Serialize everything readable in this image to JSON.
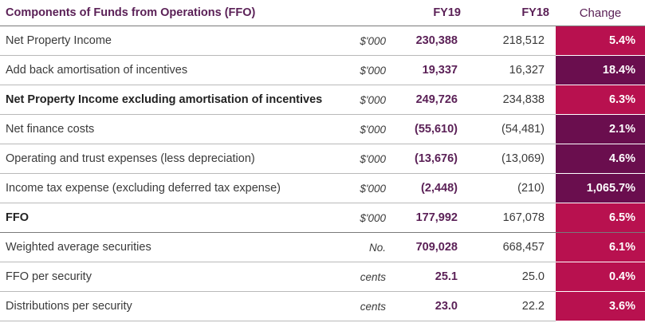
{
  "header": {
    "label": "Components of Funds from Operations (FFO)",
    "unit": "",
    "fy19": "FY19",
    "fy18": "FY18",
    "change": "Change"
  },
  "rows": [
    {
      "label": "Net Property Income",
      "unit": "$'000",
      "fy19": "230,388",
      "fy18": "218,512",
      "change": "5.4%",
      "color": "#b8114f"
    },
    {
      "label": "Add back amortisation of incentives",
      "unit": "$'000",
      "fy19": "19,337",
      "fy18": "16,327",
      "change": "18.4%",
      "color": "#6a0e4e"
    },
    {
      "label": "Net Property Income excluding amortisation of incentives",
      "unit": "$'000",
      "fy19": "249,726",
      "fy18": "234,838",
      "change": "6.3%",
      "color": "#b8114f"
    },
    {
      "label": "Net finance costs",
      "unit": "$'000",
      "fy19": "(55,610)",
      "fy18": "(54,481)",
      "change": "2.1%",
      "color": "#6a0e4e"
    },
    {
      "label": "Operating and trust expenses (less depreciation)",
      "unit": "$'000",
      "fy19": "(13,676)",
      "fy18": "(13,069)",
      "change": "4.6%",
      "color": "#6a0e4e"
    },
    {
      "label": "Income tax expense (excluding deferred tax expense)",
      "unit": "$'000",
      "fy19": "(2,448)",
      "fy18": "(210)",
      "change": "1,065.7%",
      "color": "#6a0e4e"
    },
    {
      "label": "FFO",
      "unit": "$'000",
      "fy19": "177,992",
      "fy18": "167,078",
      "change": "6.5%",
      "color": "#b8114f"
    },
    {
      "label": "Weighted average securities",
      "unit": "No.",
      "fy19": "709,028",
      "fy18": "668,457",
      "change": "6.1%",
      "color": "#b8114f"
    },
    {
      "label": "FFO per security",
      "unit": "cents",
      "fy19": "25.1",
      "fy18": "25.0",
      "change": "0.4%",
      "color": "#b8114f"
    },
    {
      "label": "Distributions per security",
      "unit": "cents",
      "fy19": "23.0",
      "fy18": "22.2",
      "change": "3.6%",
      "color": "#b8114f"
    }
  ]
}
